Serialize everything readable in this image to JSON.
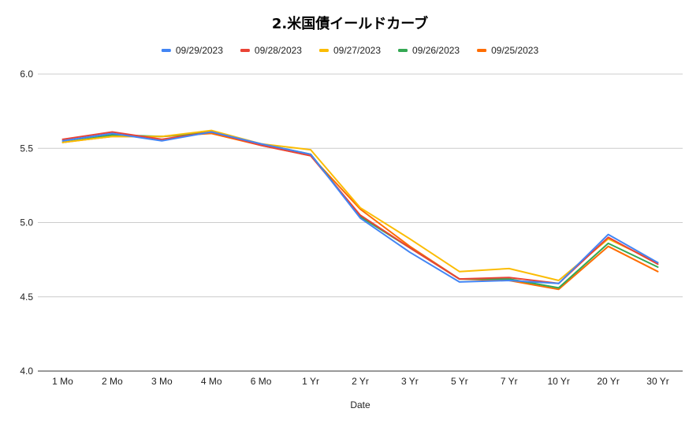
{
  "chart_data": {
    "type": "line",
    "title": "2.米国債イールドカーブ",
    "xlabel": "Date",
    "ylabel": "",
    "categories": [
      "1 Mo",
      "2 Mo",
      "3 Mo",
      "4 Mo",
      "6 Mo",
      "1 Yr",
      "2 Yr",
      "3 Yr",
      "5 Yr",
      "7 Yr",
      "10 Yr",
      "20 Yr",
      "30 Yr"
    ],
    "ylim": [
      4.0,
      6.0
    ],
    "yticks": [
      "4.0",
      "4.5",
      "5.0",
      "5.5",
      "6.0"
    ],
    "grid": true,
    "legend_position": "top",
    "series": [
      {
        "name": "09/29/2023",
        "color": "#4285f4",
        "values": [
          5.55,
          5.6,
          5.55,
          5.61,
          5.53,
          5.46,
          5.03,
          4.8,
          4.6,
          4.61,
          4.59,
          4.92,
          4.73
        ]
      },
      {
        "name": "09/28/2023",
        "color": "#ea4335",
        "values": [
          5.56,
          5.61,
          5.56,
          5.61,
          5.52,
          5.45,
          5.05,
          4.83,
          4.62,
          4.63,
          4.59,
          4.9,
          4.72
        ]
      },
      {
        "name": "09/27/2023",
        "color": "#fbbc04",
        "values": [
          5.54,
          5.58,
          5.58,
          5.62,
          5.53,
          5.49,
          5.1,
          4.89,
          4.67,
          4.69,
          4.61,
          4.89,
          4.73
        ]
      },
      {
        "name": "09/26/2023",
        "color": "#34a853",
        "values": [
          5.54,
          5.59,
          5.58,
          5.61,
          5.53,
          5.46,
          5.04,
          4.83,
          4.62,
          4.62,
          4.56,
          4.86,
          4.7
        ]
      },
      {
        "name": "09/25/2023",
        "color": "#ff6d01",
        "values": [
          5.54,
          5.58,
          5.58,
          5.6,
          5.52,
          5.45,
          5.09,
          4.84,
          4.62,
          4.61,
          4.55,
          4.84,
          4.67
        ]
      }
    ]
  }
}
